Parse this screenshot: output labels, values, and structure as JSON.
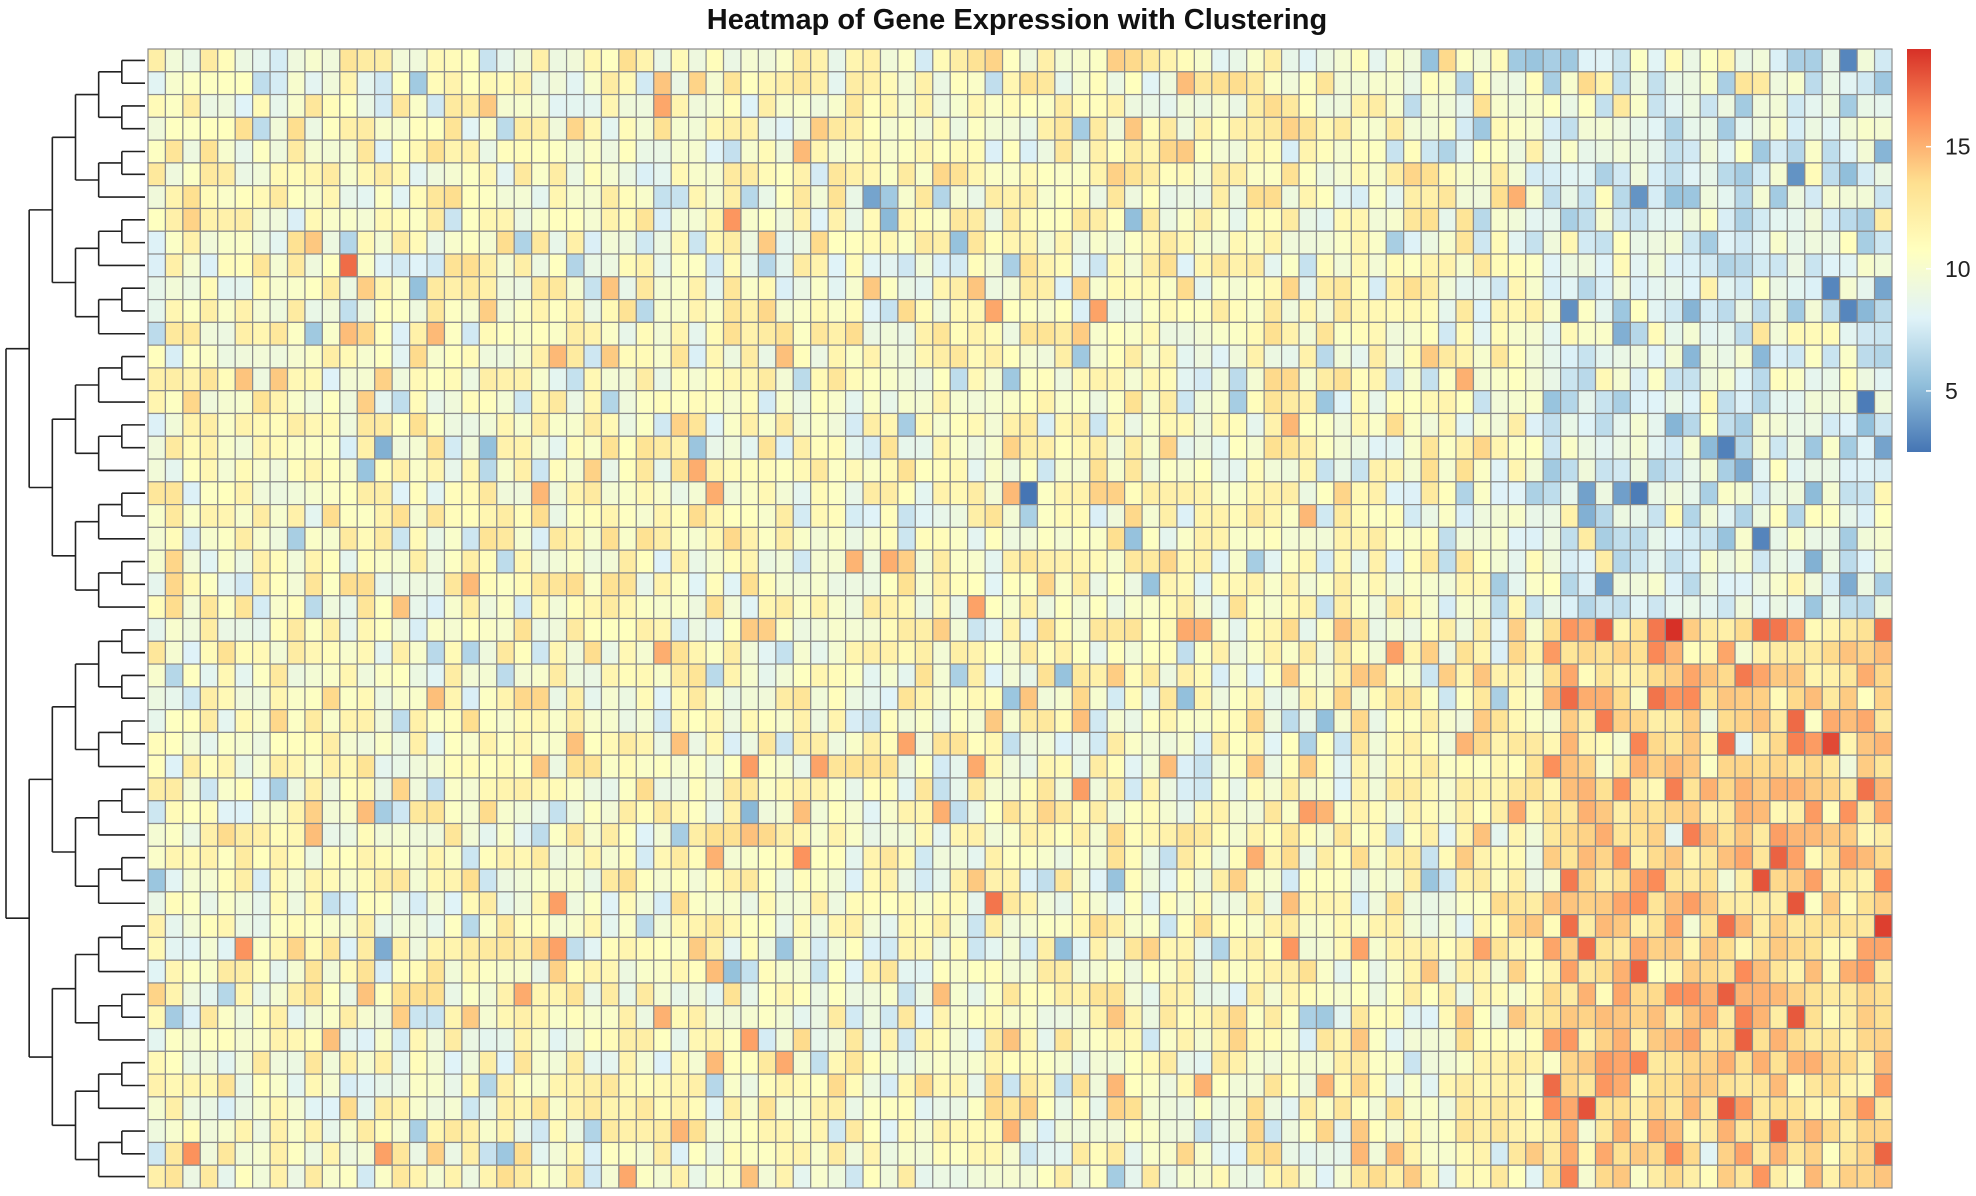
{
  "chart_data": {
    "type": "heatmap",
    "title": "Heatmap of Gene Expression with Clustering",
    "xlabel": "",
    "ylabel": "",
    "n_rows": 50,
    "n_cols": 100,
    "value_range": [
      2.5,
      19.0
    ],
    "colorbar": {
      "ticks": [
        5,
        10,
        15
      ],
      "tick_labels": [
        "5",
        "10",
        "15"
      ],
      "colors": [
        "#4575b4",
        "#91bfdb",
        "#e0f3f8",
        "#ffffbf",
        "#fee090",
        "#fc8d59",
        "#d73027"
      ],
      "placement": "right"
    },
    "row_dendrogram": {
      "placement": "left",
      "leaf_order": "top-to-bottom",
      "top_split": [
        "rows 1-25",
        "rows 26-50"
      ]
    },
    "pattern_notes": "Values are noisy around 10-11. Lower half rows (26-50) show elevated values (~13-15) in the rightmost ~20 columns; upper half rows show lower values (~7-8) in the same columns. Extreme cells: max ~19 near row 26, col 88; min ~2.5 near row 20, col 51."
  }
}
